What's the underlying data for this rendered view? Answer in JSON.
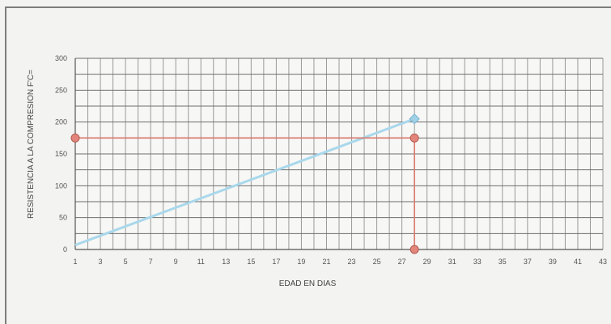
{
  "chart_data": {
    "type": "line",
    "xlabel": "EDAD EN DIAS",
    "ylabel": "RESISTENCIA A LA COMPRESION F'C=",
    "x_ticks": [
      "1",
      "3",
      "5",
      "7",
      "9",
      "11",
      "13",
      "15",
      "17",
      "19",
      "21",
      "23",
      "25",
      "27",
      "29",
      "31",
      "33",
      "35",
      "37",
      "39",
      "41",
      "43"
    ],
    "y_ticks": [
      "0",
      "50",
      "100",
      "150",
      "200",
      "250",
      "300"
    ],
    "xlim": [
      1,
      43
    ],
    "ylim": [
      0,
      300
    ],
    "grid": true,
    "series": [
      {
        "color": "#a9d8ec",
        "points": [
          [
            1,
            7
          ],
          [
            28,
            205
          ]
        ],
        "end_marker": "diamond"
      },
      {
        "color": "#d9776a",
        "points": [
          [
            1,
            175
          ],
          [
            28,
            175
          ],
          [
            28,
            0
          ]
        ],
        "markers": "circle",
        "marker_fill": "#e2857b"
      }
    ]
  }
}
